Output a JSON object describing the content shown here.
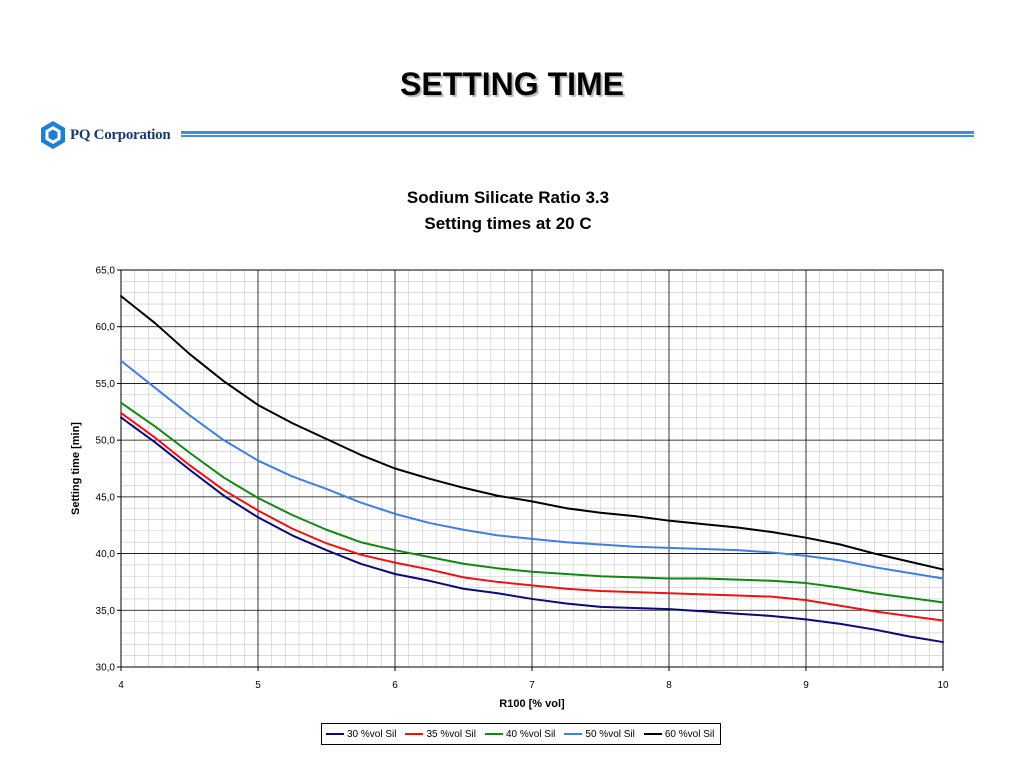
{
  "slide": {
    "title": "SETTING TIME",
    "logo_text": "PQ Corporation",
    "logo_icon": "pq-hexagon-logo"
  },
  "chart_data": {
    "type": "line",
    "title_lines": [
      "Sodium Silicate Ratio 3.3",
      "Setting times at 20 C"
    ],
    "xlabel": "R100 [% vol]",
    "ylabel": "Setting time [min]",
    "xlim": [
      4,
      10
    ],
    "ylim": [
      30,
      65
    ],
    "x_ticks": [
      "4",
      "5",
      "6",
      "7",
      "8",
      "9",
      "10"
    ],
    "y_ticks": [
      "30,0",
      "35,0",
      "40,0",
      "45,0",
      "50,0",
      "55,0",
      "60,0",
      "65,0"
    ],
    "grid": true,
    "legend_position": "bottom",
    "series": [
      {
        "name": "30 %vol Sil",
        "color": "#0a0a78",
        "points": [
          [
            4,
            52.0
          ],
          [
            4.25,
            49.8
          ],
          [
            4.5,
            47.4
          ],
          [
            4.75,
            45.1
          ],
          [
            5,
            43.2
          ],
          [
            5.25,
            41.6
          ],
          [
            5.5,
            40.3
          ],
          [
            5.75,
            39.1
          ],
          [
            6,
            38.2
          ],
          [
            6.25,
            37.6
          ],
          [
            6.5,
            36.9
          ],
          [
            6.75,
            36.5
          ],
          [
            7,
            36.0
          ],
          [
            7.25,
            35.6
          ],
          [
            7.5,
            35.3
          ],
          [
            7.75,
            35.2
          ],
          [
            8,
            35.1
          ],
          [
            8.25,
            34.9
          ],
          [
            8.5,
            34.7
          ],
          [
            8.75,
            34.5
          ],
          [
            9,
            34.2
          ],
          [
            9.25,
            33.8
          ],
          [
            9.5,
            33.3
          ],
          [
            9.75,
            32.7
          ],
          [
            10,
            32.2
          ]
        ]
      },
      {
        "name": "35 %vol Sil",
        "color": "#ee1111",
        "points": [
          [
            4,
            52.4
          ],
          [
            4.25,
            50.2
          ],
          [
            4.5,
            47.8
          ],
          [
            4.75,
            45.6
          ],
          [
            5,
            43.8
          ],
          [
            5.25,
            42.2
          ],
          [
            5.5,
            40.9
          ],
          [
            5.75,
            39.9
          ],
          [
            6,
            39.2
          ],
          [
            6.25,
            38.6
          ],
          [
            6.5,
            37.9
          ],
          [
            6.75,
            37.5
          ],
          [
            7,
            37.2
          ],
          [
            7.25,
            36.9
          ],
          [
            7.5,
            36.7
          ],
          [
            7.75,
            36.6
          ],
          [
            8,
            36.5
          ],
          [
            8.25,
            36.4
          ],
          [
            8.5,
            36.3
          ],
          [
            8.75,
            36.2
          ],
          [
            9,
            35.9
          ],
          [
            9.25,
            35.4
          ],
          [
            9.5,
            34.9
          ],
          [
            9.75,
            34.5
          ],
          [
            10,
            34.1
          ]
        ]
      },
      {
        "name": "40 %vol Sil",
        "color": "#118811",
        "points": [
          [
            4,
            53.3
          ],
          [
            4.25,
            51.2
          ],
          [
            4.5,
            48.9
          ],
          [
            4.75,
            46.7
          ],
          [
            5,
            44.9
          ],
          [
            5.25,
            43.4
          ],
          [
            5.5,
            42.1
          ],
          [
            5.75,
            41.0
          ],
          [
            6,
            40.3
          ],
          [
            6.25,
            39.7
          ],
          [
            6.5,
            39.1
          ],
          [
            6.75,
            38.7
          ],
          [
            7,
            38.4
          ],
          [
            7.25,
            38.2
          ],
          [
            7.5,
            38.0
          ],
          [
            7.75,
            37.9
          ],
          [
            8,
            37.8
          ],
          [
            8.25,
            37.8
          ],
          [
            8.5,
            37.7
          ],
          [
            8.75,
            37.6
          ],
          [
            9,
            37.4
          ],
          [
            9.25,
            37.0
          ],
          [
            9.5,
            36.5
          ],
          [
            9.75,
            36.1
          ],
          [
            10,
            35.7
          ]
        ]
      },
      {
        "name": "50 %vol Sil",
        "color": "#3f7fe0",
        "points": [
          [
            4,
            57.0
          ],
          [
            4.25,
            54.6
          ],
          [
            4.5,
            52.2
          ],
          [
            4.75,
            50.0
          ],
          [
            5,
            48.2
          ],
          [
            5.25,
            46.8
          ],
          [
            5.5,
            45.7
          ],
          [
            5.75,
            44.5
          ],
          [
            6,
            43.5
          ],
          [
            6.25,
            42.7
          ],
          [
            6.5,
            42.1
          ],
          [
            6.75,
            41.6
          ],
          [
            7,
            41.3
          ],
          [
            7.25,
            41.0
          ],
          [
            7.5,
            40.8
          ],
          [
            7.75,
            40.6
          ],
          [
            8,
            40.5
          ],
          [
            8.25,
            40.4
          ],
          [
            8.5,
            40.3
          ],
          [
            8.75,
            40.1
          ],
          [
            9,
            39.8
          ],
          [
            9.25,
            39.4
          ],
          [
            9.5,
            38.8
          ],
          [
            9.75,
            38.3
          ],
          [
            10,
            37.8
          ]
        ]
      },
      {
        "name": "60 %vol Sil",
        "color": "#000000",
        "points": [
          [
            4,
            62.7
          ],
          [
            4.25,
            60.3
          ],
          [
            4.5,
            57.6
          ],
          [
            4.75,
            55.2
          ],
          [
            5,
            53.1
          ],
          [
            5.25,
            51.5
          ],
          [
            5.5,
            50.1
          ],
          [
            5.75,
            48.7
          ],
          [
            6,
            47.5
          ],
          [
            6.25,
            46.6
          ],
          [
            6.5,
            45.8
          ],
          [
            6.75,
            45.1
          ],
          [
            7,
            44.6
          ],
          [
            7.25,
            44.0
          ],
          [
            7.5,
            43.6
          ],
          [
            7.75,
            43.3
          ],
          [
            8,
            42.9
          ],
          [
            8.25,
            42.6
          ],
          [
            8.5,
            42.3
          ],
          [
            8.75,
            41.9
          ],
          [
            9,
            41.4
          ],
          [
            9.25,
            40.8
          ],
          [
            9.5,
            40.0
          ],
          [
            9.75,
            39.3
          ],
          [
            10,
            38.6
          ]
        ]
      }
    ]
  }
}
